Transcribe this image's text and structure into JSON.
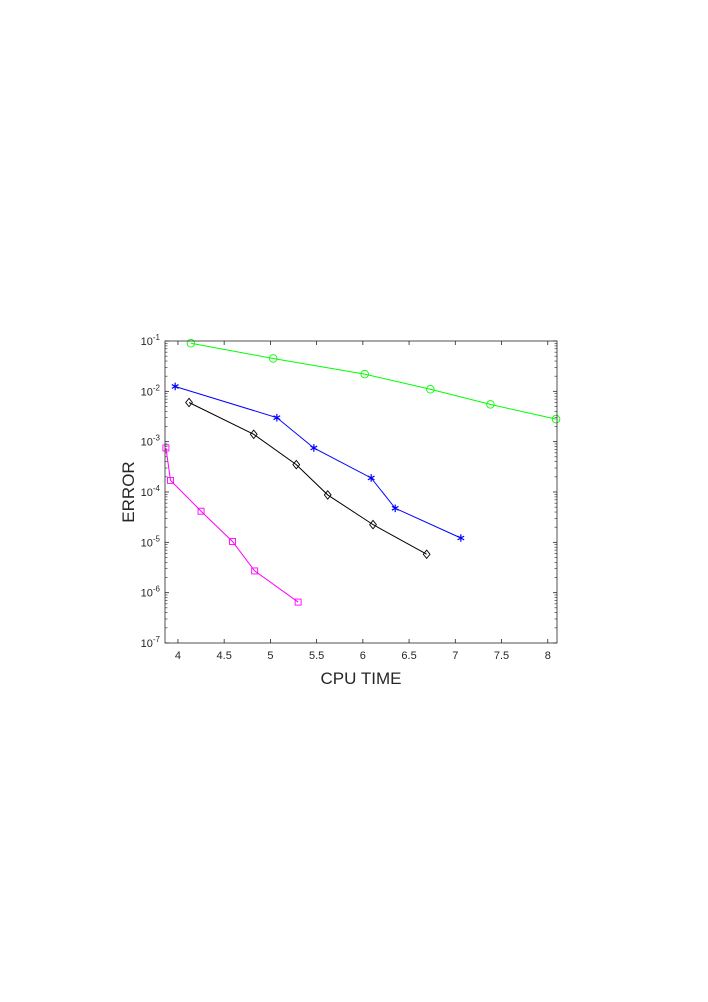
{
  "chart_data": {
    "type": "line",
    "title": "",
    "xlabel": "CPU TIME",
    "ylabel": "ERROR",
    "xlim": [
      3.86,
      8.1
    ],
    "ylim": [
      1e-07,
      0.1
    ],
    "yscale": "log",
    "grid": false,
    "legend": "none",
    "x_ticks": [
      "4",
      "4.5",
      "5",
      "5.5",
      "6",
      "6.5",
      "7",
      "7.5",
      "8"
    ],
    "x_tick_values": [
      4,
      4.5,
      5,
      5.5,
      6,
      6.5,
      7,
      7.5,
      8
    ],
    "y_ticks": [
      {
        "base": "10",
        "exp": "-7",
        "value": 1e-07
      },
      {
        "base": "10",
        "exp": "-6",
        "value": 1e-06
      },
      {
        "base": "10",
        "exp": "-5",
        "value": 1e-05
      },
      {
        "base": "10",
        "exp": "-4",
        "value": 0.0001
      },
      {
        "base": "10",
        "exp": "-3",
        "value": 0.001
      },
      {
        "base": "10",
        "exp": "-2",
        "value": 0.01
      },
      {
        "base": "10",
        "exp": "-1",
        "value": 0.1
      }
    ],
    "series": [
      {
        "color": "#00ff00",
        "marker": "circle",
        "x": [
          4.14,
          5.03,
          6.02,
          6.73,
          7.38,
          8.09
        ],
        "y": [
          0.09,
          0.045,
          0.022,
          0.011,
          0.0055,
          0.0028
        ]
      },
      {
        "color": "#0000ff",
        "marker": "asterisk",
        "x": [
          3.97,
          5.07,
          5.47,
          6.09,
          6.35,
          7.06
        ],
        "y": [
          0.0125,
          0.003,
          0.00075,
          0.00019,
          4.75e-05,
          1.22e-05
        ]
      },
      {
        "color": "#000000",
        "marker": "diamond",
        "x": [
          4.12,
          4.82,
          5.28,
          5.62,
          6.11,
          6.69
        ],
        "y": [
          0.006,
          0.0014,
          0.00035,
          8.75e-05,
          2.25e-05,
          5.8e-06
        ]
      },
      {
        "color": "#ff00ff",
        "marker": "square",
        "x": [
          3.87,
          3.92,
          4.25,
          4.59,
          4.83,
          5.3
        ],
        "y": [
          0.00075,
          0.00017,
          4.15e-05,
          1.04e-05,
          2.7e-06,
          6.5e-07
        ]
      }
    ]
  }
}
